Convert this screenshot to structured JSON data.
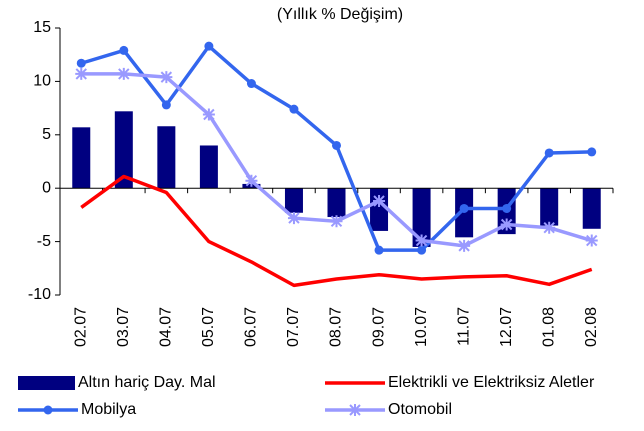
{
  "chart_data": {
    "type": "bar-line",
    "title": "(Yıllık % Değişim)",
    "categories": [
      "02.07",
      "03.07",
      "04.07",
      "05.07",
      "06.07",
      "07.07",
      "08.07",
      "09.07",
      "10.07",
      "11.07",
      "12.07",
      "01.08",
      "02.08"
    ],
    "series": [
      {
        "name": "Altın hariç Day. Mal",
        "type": "bar",
        "color": "#000080",
        "values": [
          5.7,
          7.2,
          5.8,
          4.0,
          0.4,
          -2.3,
          -2.7,
          -4.0,
          -5.5,
          -4.6,
          -4.3,
          -3.5,
          -3.8
        ]
      },
      {
        "name": "Elektrikli ve Elektriksiz Aletler",
        "type": "line",
        "color": "#ff0000",
        "values": [
          -1.8,
          1.1,
          -0.4,
          -5.0,
          -6.9,
          -9.1,
          -8.5,
          -8.1,
          -8.5,
          -8.3,
          -8.2,
          -9.0,
          -7.6
        ]
      },
      {
        "name": "Mobilya",
        "type": "line",
        "marker": "circle",
        "color": "#3366ee",
        "values": [
          11.7,
          12.9,
          7.8,
          13.3,
          9.8,
          7.4,
          4.0,
          -5.8,
          -5.8,
          -1.9,
          -1.9,
          3.3,
          3.4
        ]
      },
      {
        "name": "Otomobil",
        "type": "line",
        "marker": "star",
        "color": "#9999ff",
        "values": [
          10.7,
          10.7,
          10.4,
          6.9,
          0.7,
          -2.8,
          -3.1,
          -1.2,
          -4.9,
          -5.4,
          -3.4,
          -3.7,
          -4.9
        ]
      }
    ],
    "ylim": [
      -10,
      15
    ],
    "yticks": [
      -10,
      -5,
      0,
      5,
      10,
      15
    ],
    "grid": false
  }
}
